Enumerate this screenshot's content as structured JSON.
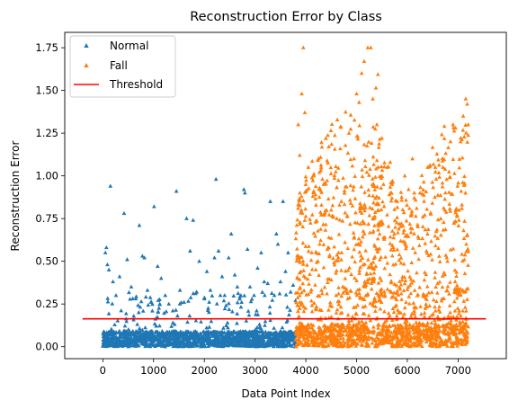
{
  "chart_data": {
    "type": "scatter",
    "title": "Reconstruction Error by Class",
    "xlabel": "Data Point Index",
    "ylabel": "Reconstruction Error",
    "xlim": [
      -750,
      7950
    ],
    "ylim": [
      -0.07,
      1.84
    ],
    "xticks": [
      0,
      1000,
      2000,
      3000,
      4000,
      5000,
      6000,
      7000
    ],
    "xtick_labels": [
      "0",
      "1000",
      "2000",
      "3000",
      "4000",
      "5000",
      "6000",
      "7000"
    ],
    "yticks": [
      0.0,
      0.25,
      0.5,
      0.75,
      1.0,
      1.25,
      1.5,
      1.75
    ],
    "ytick_labels": [
      "0.00",
      "0.25",
      "0.50",
      "0.75",
      "1.00",
      "1.25",
      "1.50",
      "1.75"
    ],
    "grid": false,
    "legend_position": "top-left",
    "marker": "triangle-up",
    "series": [
      {
        "name": "Normal",
        "color": "#1f77b4",
        "x_range": [
          0,
          3800
        ],
        "n_points": 3800,
        "typical_max": 0.18,
        "highlighted_points": [
          [
            50,
            0.55
          ],
          [
            70,
            0.58
          ],
          [
            90,
            0.48
          ],
          [
            120,
            0.45
          ],
          [
            150,
            0.94
          ],
          [
            200,
            0.38
          ],
          [
            260,
            0.3
          ],
          [
            330,
            0.41
          ],
          [
            420,
            0.78
          ],
          [
            480,
            0.51
          ],
          [
            560,
            0.35
          ],
          [
            650,
            0.28
          ],
          [
            720,
            0.71
          ],
          [
            780,
            0.53
          ],
          [
            820,
            0.52
          ],
          [
            880,
            0.33
          ],
          [
            950,
            0.26
          ],
          [
            1010,
            0.82
          ],
          [
            1080,
            0.47
          ],
          [
            1150,
            0.4
          ],
          [
            1230,
            0.3
          ],
          [
            1300,
            0.25
          ],
          [
            1380,
            0.21
          ],
          [
            1450,
            0.91
          ],
          [
            1520,
            0.33
          ],
          [
            1600,
            0.26
          ],
          [
            1650,
            0.75
          ],
          [
            1720,
            0.56
          ],
          [
            1780,
            0.74
          ],
          [
            1850,
            0.32
          ],
          [
            1900,
            0.5
          ],
          [
            2000,
            0.28
          ],
          [
            2050,
            0.44
          ],
          [
            2120,
            0.33
          ],
          [
            2200,
            0.52
          ],
          [
            2230,
            0.98
          ],
          [
            2280,
            0.56
          ],
          [
            2350,
            0.41
          ],
          [
            2400,
            0.3
          ],
          [
            2480,
            0.52
          ],
          [
            2530,
            0.66
          ],
          [
            2600,
            0.42
          ],
          [
            2650,
            0.35
          ],
          [
            2720,
            0.3
          ],
          [
            2780,
            0.92
          ],
          [
            2800,
            0.9
          ],
          [
            2850,
            0.57
          ],
          [
            2900,
            0.35
          ],
          [
            2980,
            0.3
          ],
          [
            3050,
            0.46
          ],
          [
            3120,
            0.55
          ],
          [
            3180,
            0.38
          ],
          [
            3250,
            0.37
          ],
          [
            3300,
            0.85
          ],
          [
            3380,
            0.3
          ],
          [
            3420,
            0.66
          ],
          [
            3450,
            0.6
          ],
          [
            3500,
            0.38
          ],
          [
            3550,
            0.85
          ],
          [
            3600,
            0.44
          ],
          [
            3650,
            0.55
          ],
          [
            3700,
            0.32
          ],
          [
            3750,
            0.36
          ]
        ]
      },
      {
        "name": "Fall",
        "color": "#ff7f0e",
        "x_range": [
          3800,
          7200
        ],
        "n_points": 3400,
        "typical_max": 0.3,
        "highlighted_points": [
          [
            3850,
            1.3
          ],
          [
            3880,
            1.12
          ],
          [
            3920,
            1.48
          ],
          [
            3950,
            1.75
          ],
          [
            3980,
            1.37
          ],
          [
            4050,
            1.05
          ],
          [
            4150,
            1.0
          ],
          [
            4250,
            1.1
          ],
          [
            4350,
            0.95
          ],
          [
            4500,
            0.8
          ],
          [
            4700,
            0.85
          ],
          [
            4850,
            1.25
          ],
          [
            4950,
            1.1
          ],
          [
            5000,
            1.48
          ],
          [
            5050,
            1.43
          ],
          [
            5100,
            1.6
          ],
          [
            5150,
            1.67
          ],
          [
            5220,
            1.75
          ],
          [
            5280,
            1.75
          ],
          [
            5320,
            1.45
          ],
          [
            5400,
            1.3
          ],
          [
            5500,
            1.22
          ],
          [
            5600,
            1.05
          ],
          [
            5700,
            0.95
          ],
          [
            5800,
            0.85
          ],
          [
            5950,
            1.0
          ],
          [
            6100,
            1.1
          ],
          [
            6250,
            0.9
          ],
          [
            6400,
            1.05
          ],
          [
            6550,
            1.05
          ],
          [
            6700,
            1.05
          ],
          [
            6850,
            1.2
          ],
          [
            6900,
            1.3
          ],
          [
            6950,
            1.28
          ],
          [
            7050,
            1.2
          ],
          [
            7100,
            1.35
          ],
          [
            7150,
            1.45
          ],
          [
            7180,
            1.42
          ],
          [
            7200,
            1.3
          ]
        ]
      }
    ],
    "threshold": {
      "name": "Threshold",
      "value": 0.163,
      "x_range": [
        -400,
        7550
      ],
      "color": "#ff0000"
    }
  }
}
